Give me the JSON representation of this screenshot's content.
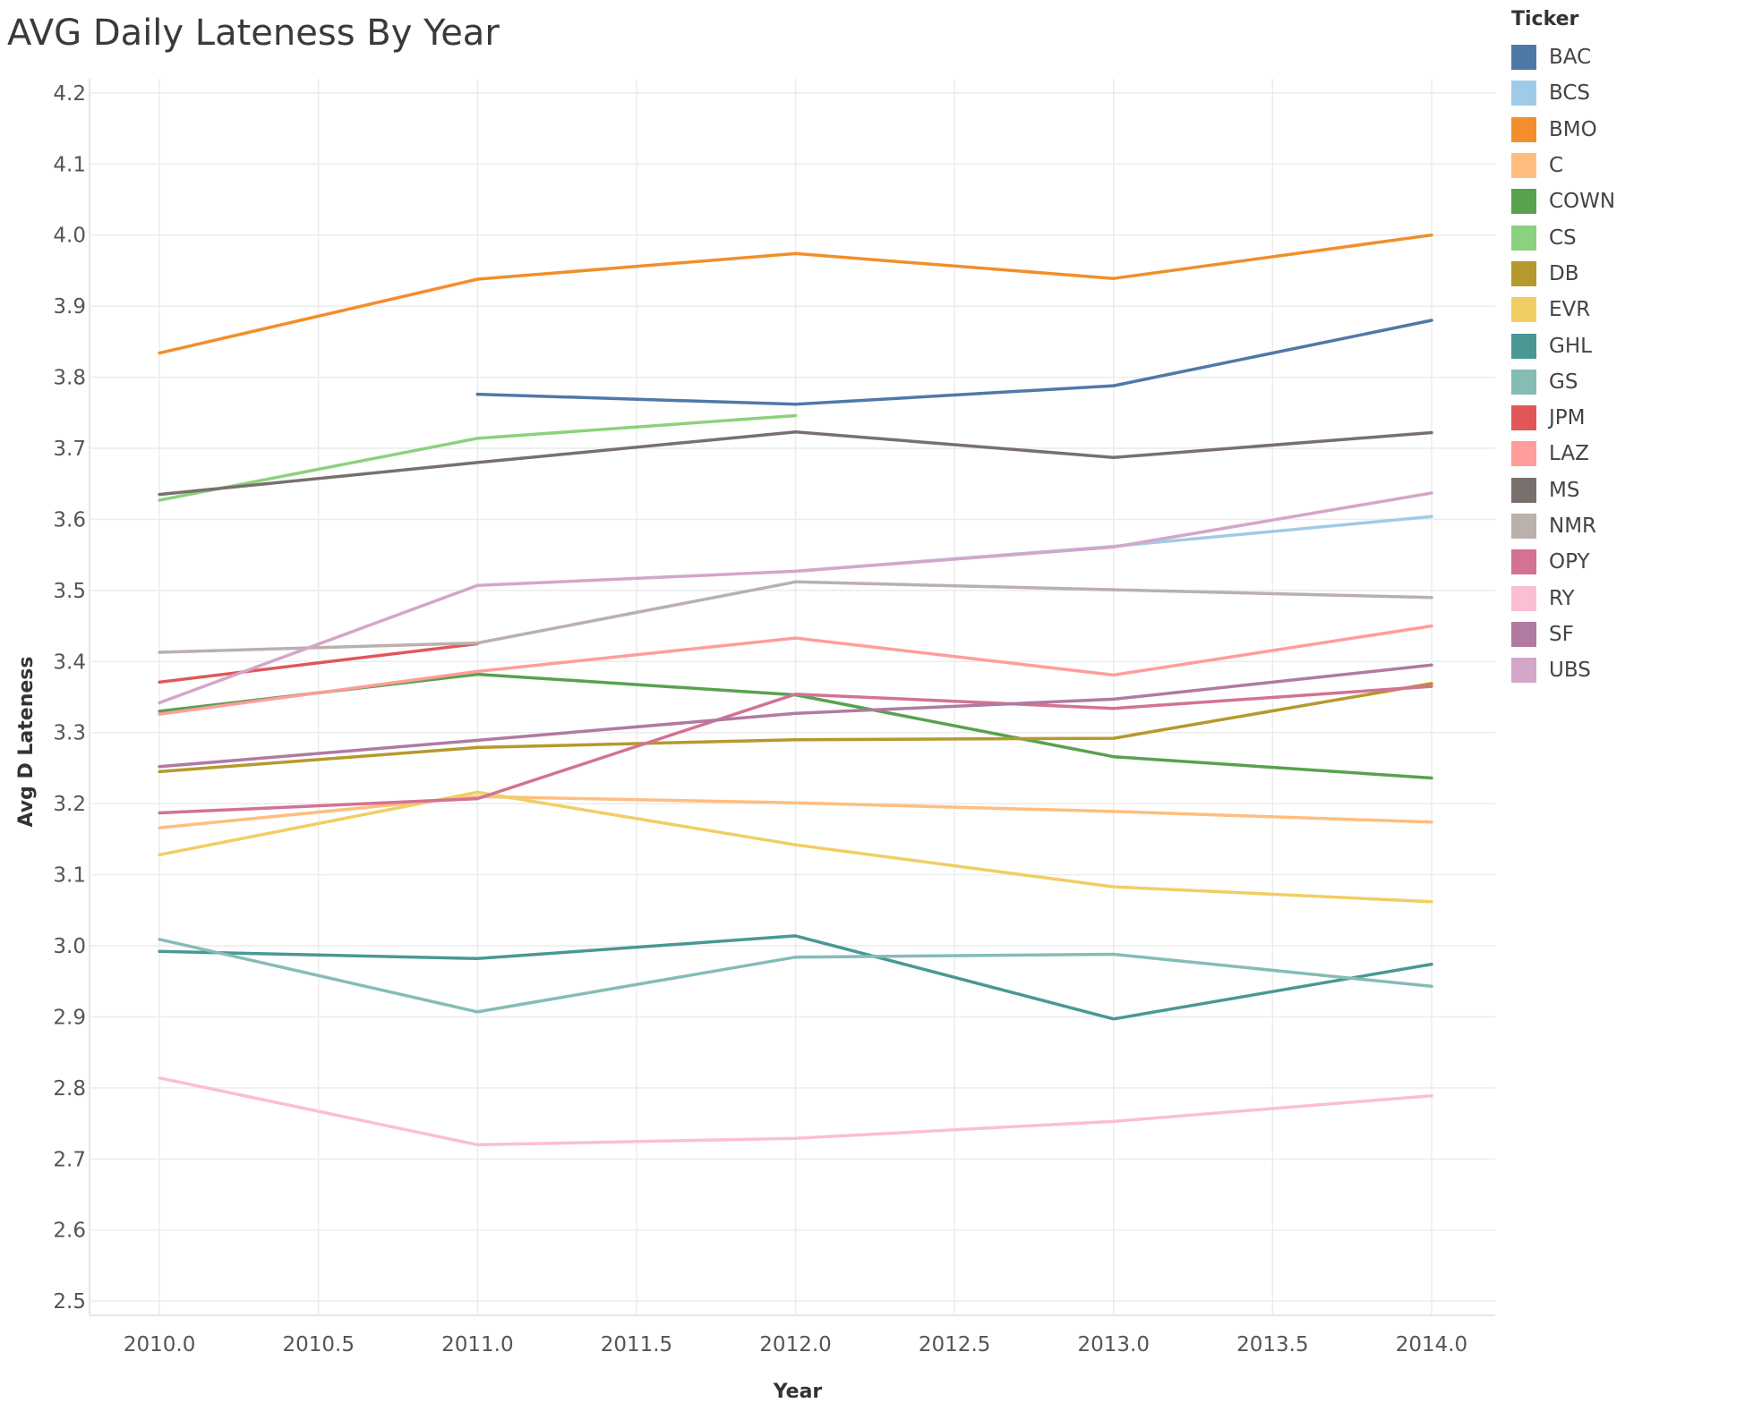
{
  "chart_data": {
    "type": "line",
    "title": "AVG Daily Lateness By Year",
    "xlabel": "Year",
    "ylabel": "Avg D Lateness",
    "xlim": [
      2009.78,
      2014.2
    ],
    "ylim": [
      2.48,
      4.22
    ],
    "x_ticks": [
      "2010.0",
      "2010.5",
      "2011.0",
      "2011.5",
      "2012.0",
      "2012.5",
      "2013.0",
      "2013.5",
      "2014.0"
    ],
    "y_ticks": [
      "2.5",
      "2.6",
      "2.7",
      "2.8",
      "2.9",
      "3.0",
      "3.1",
      "3.2",
      "3.3",
      "3.4",
      "3.5",
      "3.6",
      "3.7",
      "3.8",
      "3.9",
      "4.0",
      "4.1",
      "4.2"
    ],
    "grid": true,
    "legend_title": "Ticker",
    "legend_position": "right",
    "series": [
      {
        "name": "BAC",
        "color": "#4e79a7",
        "points": [
          [
            2011,
            3.776
          ],
          [
            2012,
            3.762
          ],
          [
            2013,
            3.788
          ],
          [
            2014,
            3.88
          ]
        ]
      },
      {
        "name": "BCS",
        "color": "#a0cbe8",
        "points": [
          [
            2012,
            3.527
          ],
          [
            2013,
            3.562
          ],
          [
            2014,
            3.604
          ]
        ]
      },
      {
        "name": "BMO",
        "color": "#f28e2b",
        "points": [
          [
            2010,
            3.834
          ],
          [
            2011,
            3.938
          ],
          [
            2012,
            3.974
          ],
          [
            2013,
            3.939
          ],
          [
            2014,
            4.0
          ]
        ]
      },
      {
        "name": "C",
        "color": "#ffbe7d",
        "points": [
          [
            2010,
            3.166
          ],
          [
            2011,
            3.21
          ],
          [
            2012,
            3.201
          ],
          [
            2013,
            3.189
          ],
          [
            2014,
            3.174
          ]
        ]
      },
      {
        "name": "COWN",
        "color": "#59a14f",
        "points": [
          [
            2010,
            3.33
          ],
          [
            2011,
            3.382
          ],
          [
            2012,
            3.353
          ],
          [
            2013,
            3.266
          ],
          [
            2014,
            3.236
          ]
        ]
      },
      {
        "name": "CS",
        "color": "#8cd17d",
        "points": [
          [
            2010,
            3.627
          ],
          [
            2011,
            3.714
          ],
          [
            2012,
            3.746
          ]
        ]
      },
      {
        "name": "DB",
        "color": "#b6992d",
        "points": [
          [
            2010,
            3.245
          ],
          [
            2011,
            3.279
          ],
          [
            2012,
            3.29
          ],
          [
            2013,
            3.292
          ],
          [
            2014,
            3.369
          ]
        ]
      },
      {
        "name": "EVR",
        "color": "#f1ce63",
        "points": [
          [
            2010,
            3.128
          ],
          [
            2011,
            3.216
          ],
          [
            2012,
            3.142
          ],
          [
            2013,
            3.083
          ],
          [
            2014,
            3.062
          ]
        ]
      },
      {
        "name": "GHL",
        "color": "#499894",
        "points": [
          [
            2010,
            2.992
          ],
          [
            2011,
            2.982
          ],
          [
            2012,
            3.014
          ],
          [
            2013,
            2.897
          ],
          [
            2014,
            2.974
          ]
        ]
      },
      {
        "name": "GS",
        "color": "#86bcb6",
        "points": [
          [
            2010,
            3.009
          ],
          [
            2011,
            2.907
          ],
          [
            2012,
            2.984
          ],
          [
            2013,
            2.988
          ],
          [
            2014,
            2.943
          ]
        ]
      },
      {
        "name": "JPM",
        "color": "#e15759",
        "points": [
          [
            2010,
            3.371
          ],
          [
            2011,
            3.425
          ]
        ]
      },
      {
        "name": "LAZ",
        "color": "#ff9d9a",
        "points": [
          [
            2010,
            3.326
          ],
          [
            2011,
            3.386
          ],
          [
            2012,
            3.433
          ],
          [
            2013,
            3.381
          ],
          [
            2014,
            3.45
          ]
        ]
      },
      {
        "name": "MS",
        "color": "#79706e",
        "points": [
          [
            2010,
            3.635
          ],
          [
            2011,
            3.68
          ],
          [
            2012,
            3.723
          ],
          [
            2013,
            3.687
          ],
          [
            2014,
            3.722
          ]
        ]
      },
      {
        "name": "NMR",
        "color": "#bab0ac",
        "points": [
          [
            2010,
            3.413
          ],
          [
            2011,
            3.426
          ],
          [
            2012,
            3.512
          ],
          [
            2013,
            3.501
          ],
          [
            2014,
            3.49
          ]
        ]
      },
      {
        "name": "OPY",
        "color": "#d37295",
        "points": [
          [
            2010,
            3.187
          ],
          [
            2011,
            3.207
          ],
          [
            2012,
            3.354
          ],
          [
            2013,
            3.334
          ],
          [
            2014,
            3.365
          ]
        ]
      },
      {
        "name": "RY",
        "color": "#fabfd2",
        "points": [
          [
            2010,
            2.814
          ],
          [
            2011,
            2.72
          ],
          [
            2012,
            2.729
          ],
          [
            2013,
            2.753
          ],
          [
            2014,
            2.789
          ]
        ]
      },
      {
        "name": "SF",
        "color": "#b07aa1",
        "points": [
          [
            2010,
            3.252
          ],
          [
            2011,
            3.289
          ],
          [
            2012,
            3.327
          ],
          [
            2013,
            3.347
          ],
          [
            2014,
            3.395
          ]
        ]
      },
      {
        "name": "UBS",
        "color": "#d4a6c8",
        "points": [
          [
            2010,
            3.342
          ],
          [
            2011,
            3.507
          ],
          [
            2012,
            3.527
          ],
          [
            2013,
            3.561
          ],
          [
            2014,
            3.637
          ]
        ]
      }
    ]
  }
}
